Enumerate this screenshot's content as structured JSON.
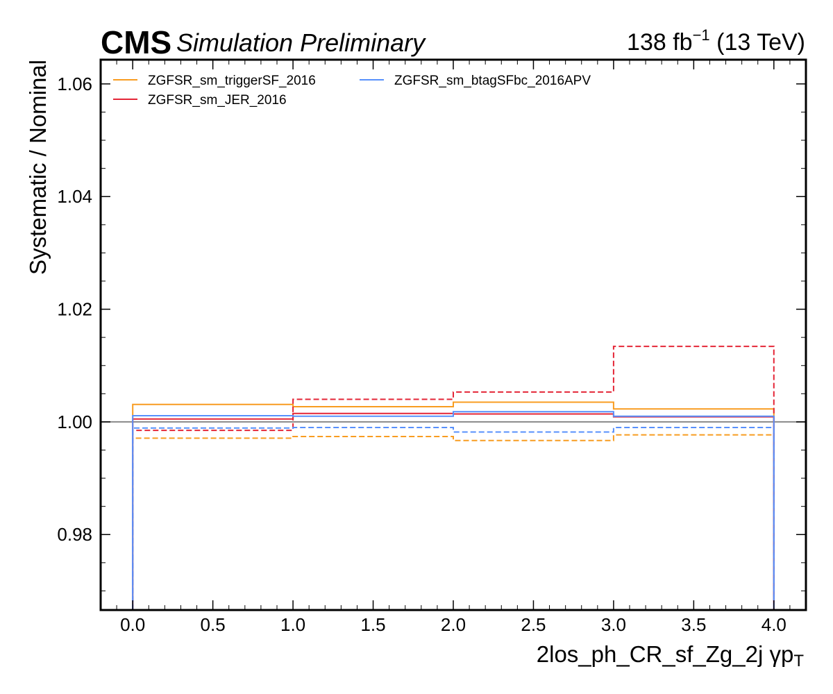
{
  "header": {
    "experiment": "CMS",
    "status": "Simulation Preliminary",
    "lumi_value": "138 fb",
    "lumi_exp": "−1",
    "lumi_energy": " (13 TeV)"
  },
  "chart_data": {
    "type": "line",
    "style": "step",
    "xlabel": "2los_ph_CR_sf_Zg_2j   γp",
    "xlabel_sub": "T",
    "ylabel": "Systematic / Nominal",
    "xlim": [
      -0.2,
      4.2
    ],
    "ylim": [
      0.9666,
      1.0643
    ],
    "x_ticks": [
      0.0,
      0.5,
      1.0,
      1.5,
      2.0,
      2.5,
      3.0,
      3.5,
      4.0
    ],
    "x_tick_labels": [
      "0.0",
      "0.5",
      "1.0",
      "1.5",
      "2.0",
      "2.5",
      "3.0",
      "3.5",
      "4.0"
    ],
    "y_ticks": [
      0.98,
      1.0,
      1.02,
      1.04,
      1.06
    ],
    "y_tick_labels": [
      "0.98",
      "1.00",
      "1.02",
      "1.04",
      "1.06"
    ],
    "bin_edges": [
      0,
      1,
      2,
      3,
      4
    ],
    "reference_line": 1.0,
    "grid": false,
    "legend_position": "top-left",
    "legend_columns": 2,
    "series": [
      {
        "name": "ZGFSR_sm_triggerSF_2016",
        "color": "#f89c20",
        "variation": "up",
        "linestyle": "solid",
        "values": [
          1.0031,
          1.0027,
          1.0035,
          1.0023
        ]
      },
      {
        "name": "ZGFSR_sm_triggerSF_2016",
        "color": "#f89c20",
        "variation": "down",
        "linestyle": "dashed",
        "values": [
          0.9971,
          0.9974,
          0.9967,
          0.9977
        ]
      },
      {
        "name": "ZGFSR_sm_JER_2016",
        "color": "#e42536",
        "variation": "up",
        "linestyle": "solid",
        "values": [
          1.0005,
          1.0015,
          1.0014,
          1.0009
        ]
      },
      {
        "name": "ZGFSR_sm_JER_2016",
        "color": "#e42536",
        "variation": "down",
        "linestyle": "dashed",
        "values": [
          0.9985,
          1.004,
          1.0053,
          1.0134
        ]
      },
      {
        "name": "ZGFSR_sm_btagSFbc_2016APV",
        "color": "#5790fc",
        "variation": "up",
        "linestyle": "solid",
        "values": [
          1.0011,
          1.001,
          1.0018,
          1.001
        ]
      },
      {
        "name": "ZGFSR_sm_btagSFbc_2016APV",
        "color": "#5790fc",
        "variation": "down",
        "linestyle": "dashed",
        "values": [
          0.9989,
          0.999,
          0.9982,
          0.999
        ]
      }
    ],
    "legend": [
      {
        "name": "ZGFSR_sm_triggerSF_2016",
        "color": "#f89c20"
      },
      {
        "name": "ZGFSR_sm_JER_2016",
        "color": "#e42536"
      },
      {
        "name": "ZGFSR_sm_btagSFbc_2016APV",
        "color": "#5790fc"
      }
    ]
  }
}
